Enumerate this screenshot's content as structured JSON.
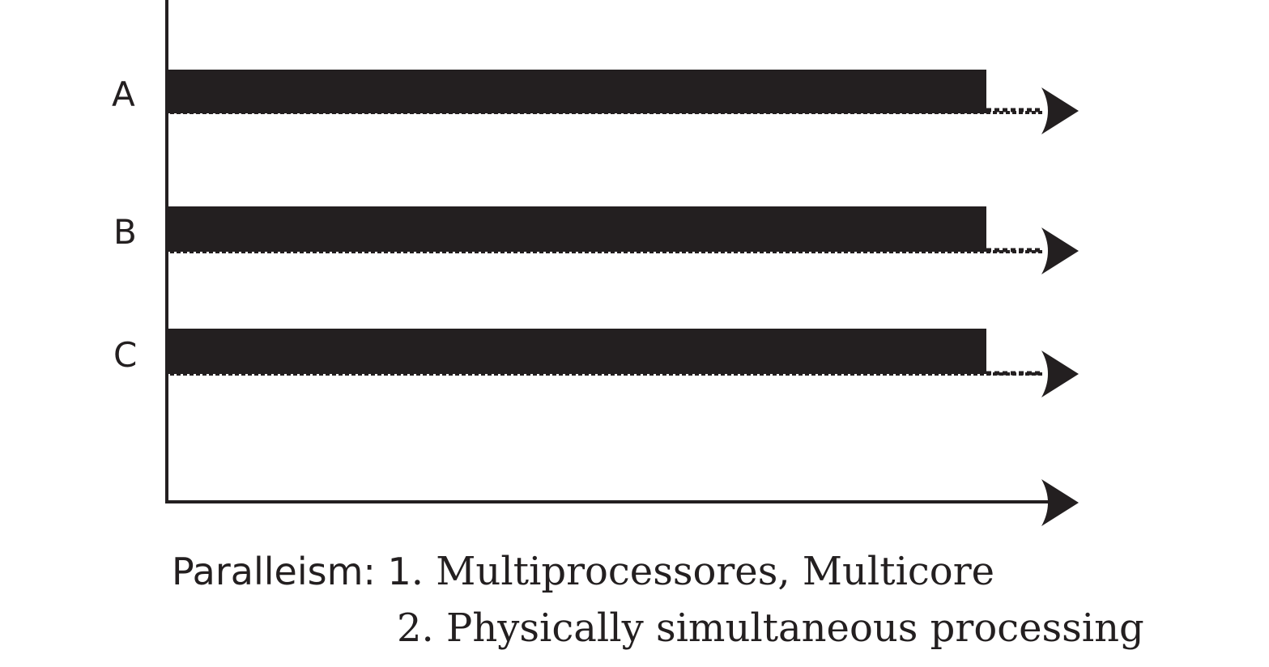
{
  "diagram": {
    "rows": [
      {
        "label": "A"
      },
      {
        "label": "B"
      },
      {
        "label": "C"
      }
    ],
    "colors": {
      "ink": "#231f20",
      "background": "#ffffff"
    }
  },
  "caption": {
    "lead": "Paralleism: 1",
    "item1": ". Multiprocessores, Multicore",
    "item2": "2. Physically simultaneous processing"
  }
}
